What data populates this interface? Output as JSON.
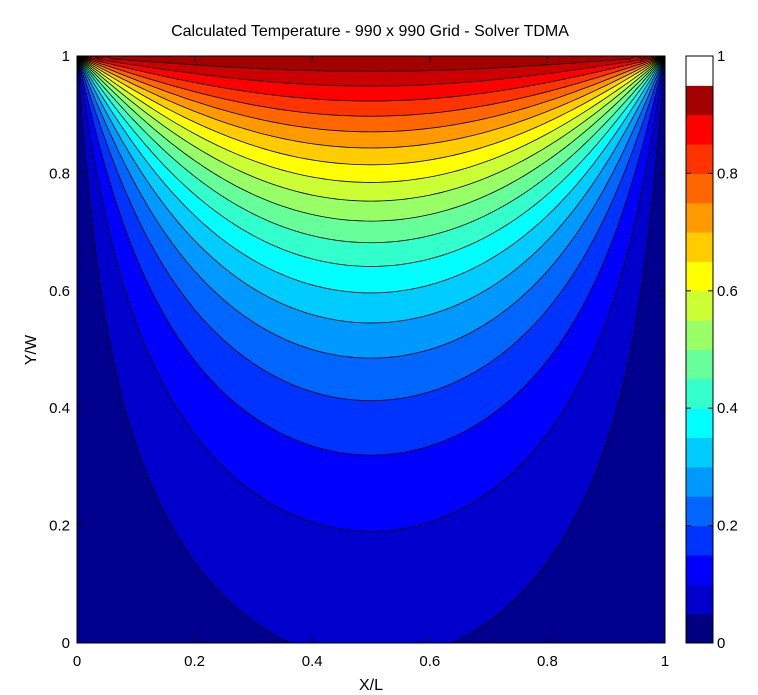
{
  "chart_data": {
    "type": "heatmap",
    "subtype": "filled-contour",
    "title": "Calculated Temperature - 990 x 990 Grid - Solver TDMA",
    "xlabel": "X/L",
    "ylabel": "Y/W",
    "xlim": [
      0,
      1
    ],
    "ylim": [
      0,
      1
    ],
    "x_ticks": [
      "0",
      "0.2",
      "0.4",
      "0.6",
      "0.8",
      "1"
    ],
    "y_ticks": [
      "0",
      "0.2",
      "0.4",
      "0.6",
      "0.8",
      "1"
    ],
    "colorbar": {
      "colormap": "jet",
      "range": [
        0,
        1
      ],
      "ticks": [
        "0",
        "0.2",
        "0.4",
        "0.6",
        "0.8",
        "1"
      ],
      "top_segment_color": "#ffffff"
    },
    "contour_levels": [
      0.05,
      0.1,
      0.15,
      0.2,
      0.25,
      0.3,
      0.35,
      0.4,
      0.45,
      0.5,
      0.55,
      0.6,
      0.65,
      0.7,
      0.75,
      0.8,
      0.85,
      0.9,
      0.95
    ],
    "midline_level_positions": {
      "x": 0.5,
      "levels": [
        0.05,
        0.1,
        0.15,
        0.2,
        0.25,
        0.3,
        0.35,
        0.4,
        0.45,
        0.5,
        0.55,
        0.6,
        0.65,
        0.7,
        0.75,
        0.8,
        0.85,
        0.9
      ],
      "y": [
        0.18,
        0.31,
        0.41,
        0.5,
        0.57,
        0.63,
        0.68,
        0.72,
        0.765,
        0.8,
        0.835,
        0.865,
        0.89,
        0.915,
        0.94,
        0.958,
        0.974,
        0.988
      ]
    },
    "boundary_conditions": {
      "top": 1,
      "bottom": 0,
      "left": 0,
      "right": 0
    },
    "grid": false,
    "legend": "none"
  }
}
